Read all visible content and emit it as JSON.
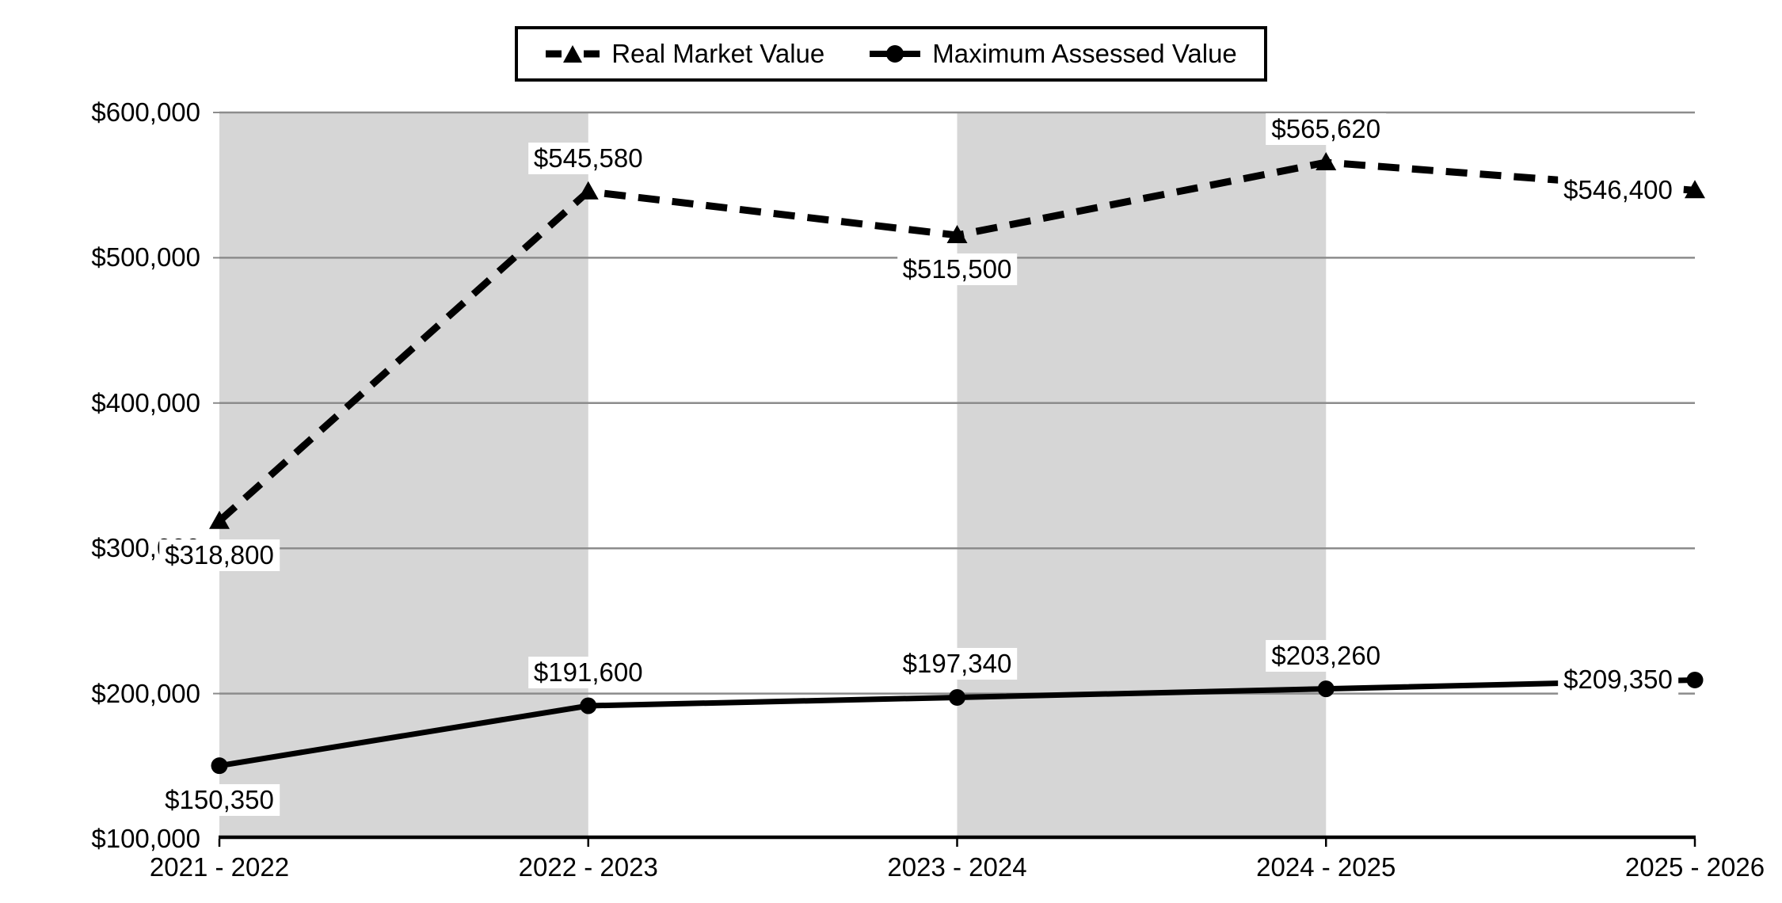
{
  "chart_data": {
    "type": "line",
    "title": "",
    "categories": [
      "2021 - 2022",
      "2022 - 2023",
      "2023 - 2024",
      "2024 - 2025",
      "2025 - 2026"
    ],
    "y_axis": {
      "min": 100000,
      "max": 600000,
      "tick_step": 100000,
      "tick_labels": [
        "$100,000",
        "$200,000",
        "$300,000",
        "$400,000",
        "$500,000",
        "$600,000"
      ]
    },
    "series": [
      {
        "name": "Real Market Value",
        "line_style": "dashed",
        "marker": "triangle",
        "values": [
          318800,
          545580,
          515500,
          565620,
          546400
        ],
        "data_labels": [
          "$318,800",
          "$545,580",
          "$515,500",
          "$565,620",
          "$546,400"
        ],
        "label_placement": [
          "below",
          "above",
          "below",
          "above",
          "left"
        ]
      },
      {
        "name": "Maximum Assessed Value",
        "line_style": "solid",
        "marker": "circle",
        "values": [
          150350,
          191600,
          197340,
          203260,
          209350
        ],
        "data_labels": [
          "$150,350",
          "$191,600",
          "$197,340",
          "$203,260",
          "$209,350"
        ],
        "label_placement": [
          "below",
          "above",
          "above",
          "above",
          "left"
        ]
      }
    ],
    "plot_bands": "alternating shaded columns between category positions (gray, white, gray, white)",
    "legend_position": "top-center",
    "grid": "horizontal gridlines at each $100,000",
    "colors": {
      "band": "#d6d6d6",
      "gridline": "#8c8c8c",
      "axis": "#000000",
      "series_line": "#000000",
      "label_bg": "#ffffff",
      "text": "#000000"
    }
  }
}
